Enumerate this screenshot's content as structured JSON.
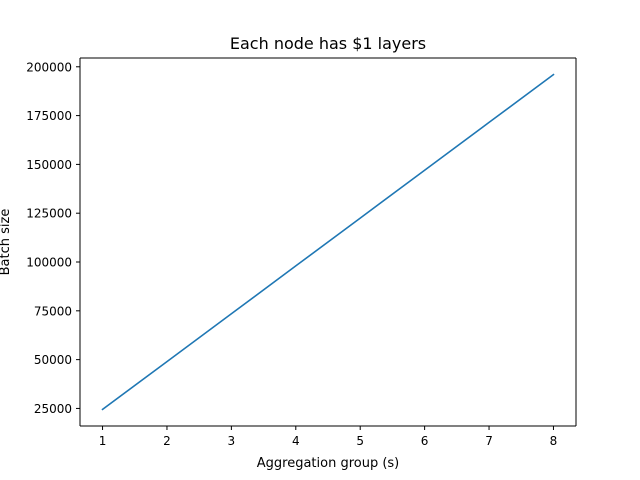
{
  "chart_data": {
    "type": "line",
    "title": "Each node has $1 layers",
    "xlabel": "Aggregation group (s)",
    "ylabel": "Batch size",
    "xlim": [
      0.65,
      8.35
    ],
    "ylim": [
      16000,
      204500
    ],
    "x_ticks": [
      1,
      2,
      3,
      4,
      5,
      6,
      7,
      8
    ],
    "y_ticks": [
      25000,
      50000,
      75000,
      100000,
      125000,
      150000,
      175000,
      200000
    ],
    "series": [
      {
        "color": "#1f77b4",
        "x": [
          1,
          2,
          3,
          4,
          5,
          6,
          7,
          8
        ],
        "values": [
          24500,
          49000,
          73500,
          98000,
          122500,
          147000,
          171500,
          196000
        ]
      }
    ],
    "grid": false,
    "legend": "none"
  }
}
